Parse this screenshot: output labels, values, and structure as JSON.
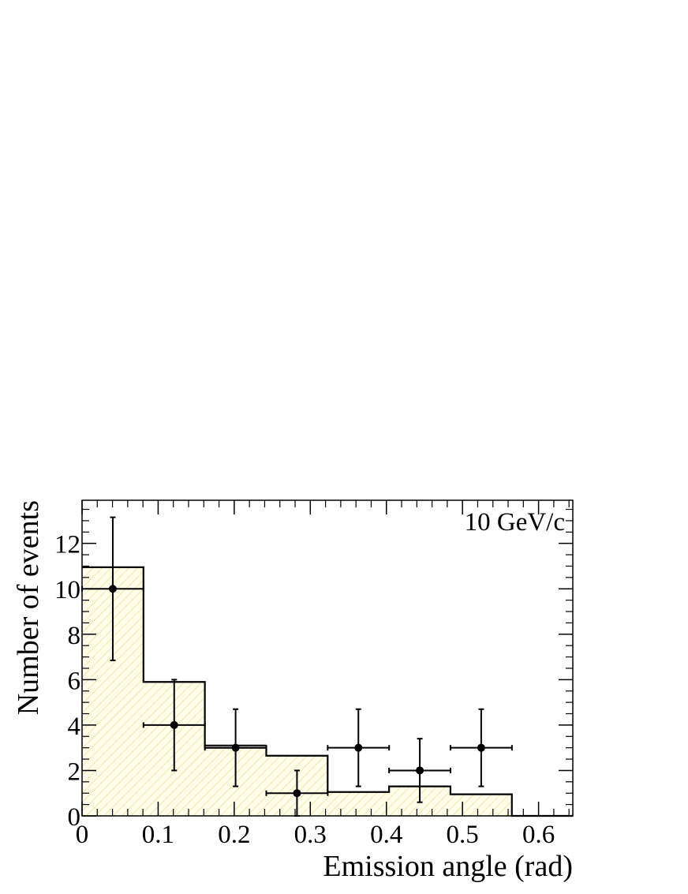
{
  "chart_data": {
    "type": "bar",
    "annotation": "10 GeV/c",
    "xlabel": "Emission angle (rad)",
    "ylabel": "Number of events",
    "xlim": [
      0,
      0.645
    ],
    "ylim": [
      0,
      13.9
    ],
    "x_tick_labels": [
      "0",
      "0.1",
      "0.2",
      "0.3",
      "0.4",
      "0.5",
      "0.6"
    ],
    "x_ticks": [
      0,
      0.1,
      0.2,
      0.3,
      0.4,
      0.5,
      0.6
    ],
    "y_tick_labels": [
      "0",
      "2",
      "4",
      "6",
      "8",
      "10",
      "12"
    ],
    "y_ticks": [
      0,
      2,
      4,
      6,
      8,
      10,
      12
    ],
    "grid": false,
    "series": [
      {
        "kind": "histogram",
        "fill": "#fefde8",
        "hatch": "#e8e5a0",
        "bin_edges": [
          0,
          0.0807,
          0.1614,
          0.2421,
          0.3228,
          0.4035,
          0.4842,
          0.5649,
          0.645
        ],
        "values": [
          10.95,
          5.9,
          3.0,
          2.65,
          1.05,
          1.3,
          0.95,
          0
        ]
      },
      {
        "kind": "points-with-errors",
        "x": [
          0.0404,
          0.1211,
          0.2018,
          0.2825,
          0.3632,
          0.4439,
          0.5246
        ],
        "x_err": [
          0.0404,
          0.0404,
          0.0404,
          0.0404,
          0.0404,
          0.0404,
          0.0404
        ],
        "y": [
          10,
          4,
          3,
          1,
          3,
          2,
          3
        ],
        "y_err_low": [
          3.15,
          2.0,
          1.7,
          1.0,
          1.7,
          1.4,
          1.7
        ],
        "y_err_high": [
          3.15,
          2.0,
          1.7,
          1.0,
          1.7,
          1.4,
          1.7
        ]
      }
    ],
    "histogram_extra_line": {
      "from_bin": 2,
      "value": 3.1
    }
  }
}
